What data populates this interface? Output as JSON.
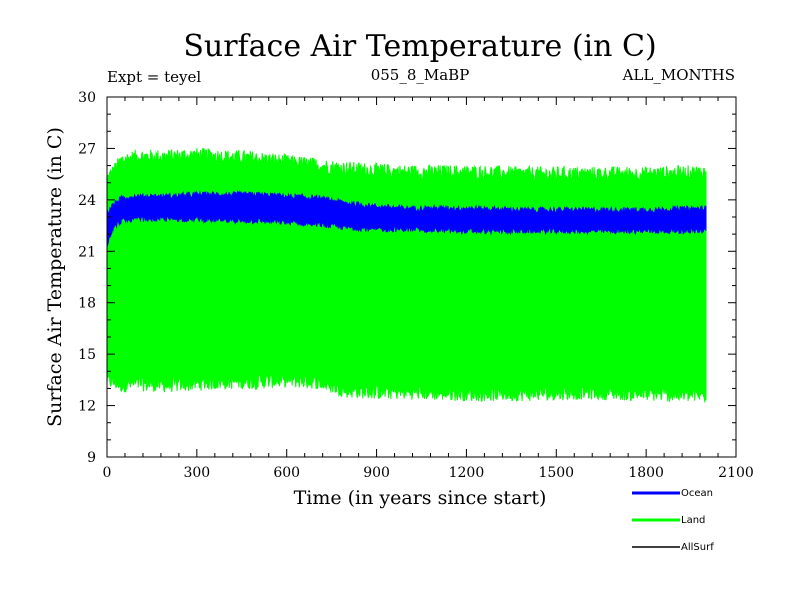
{
  "chart_data": {
    "type": "line",
    "title": "Surface Air Temperature (in C)",
    "subtitle_left": "Expt = teyel",
    "subtitle_center": "055_8_MaBP",
    "subtitle_right": "ALL_MONTHS",
    "xlabel": "Time (in years since start)",
    "ylabel": "Surface Air Temperature (in C)",
    "xlim": [
      0,
      2100
    ],
    "ylim": [
      9,
      30
    ],
    "x_ticks": [
      0,
      300,
      600,
      900,
      1200,
      1500,
      1800,
      2100
    ],
    "y_ticks": [
      9,
      12,
      15,
      18,
      21,
      24,
      27,
      30
    ],
    "x_tick_labels": [
      "0",
      "300",
      "600",
      "900",
      "1200",
      "1500",
      "1800",
      "2100"
    ],
    "y_tick_labels": [
      "9",
      "12",
      "15",
      "18",
      "21",
      "24",
      "27",
      "30"
    ],
    "legend_position": "bottom-right",
    "series": [
      {
        "name": "Land",
        "color": "#00ff00",
        "description": "monthly values oscillating in a wide seasonal envelope",
        "x": [
          0,
          50,
          100,
          200,
          300,
          400,
          500,
          600,
          700,
          800,
          900,
          1000,
          1200,
          1400,
          1600,
          1800,
          2000
        ],
        "upper": [
          25.2,
          26.3,
          26.5,
          26.5,
          26.6,
          26.5,
          26.4,
          26.2,
          26.0,
          25.8,
          25.7,
          25.6,
          25.6,
          25.5,
          25.5,
          25.5,
          25.6
        ],
        "lower": [
          13.5,
          13.2,
          13.3,
          13.2,
          13.3,
          13.4,
          13.4,
          13.5,
          13.4,
          12.9,
          12.8,
          12.8,
          12.7,
          12.7,
          12.8,
          12.7,
          12.6
        ]
      },
      {
        "name": "Ocean",
        "color": "#0000ff",
        "description": "monthly values in a narrow band",
        "x": [
          0,
          20,
          50,
          100,
          200,
          300,
          400,
          500,
          600,
          700,
          800,
          900,
          1000,
          1200,
          1400,
          1600,
          1800,
          2000
        ],
        "upper": [
          23.2,
          23.7,
          24.1,
          24.2,
          24.2,
          24.3,
          24.3,
          24.3,
          24.2,
          24.1,
          23.8,
          23.6,
          23.5,
          23.5,
          23.4,
          23.4,
          23.4,
          23.5
        ],
        "lower": [
          21.4,
          22.4,
          22.8,
          22.9,
          22.9,
          22.9,
          22.8,
          22.8,
          22.7,
          22.6,
          22.4,
          22.3,
          22.3,
          22.2,
          22.2,
          22.2,
          22.2,
          22.2
        ]
      },
      {
        "name": "AllSurf",
        "color": "#000000",
        "description": "legend entry only; series not visible in plot",
        "x": [],
        "upper": [],
        "lower": []
      }
    ]
  }
}
